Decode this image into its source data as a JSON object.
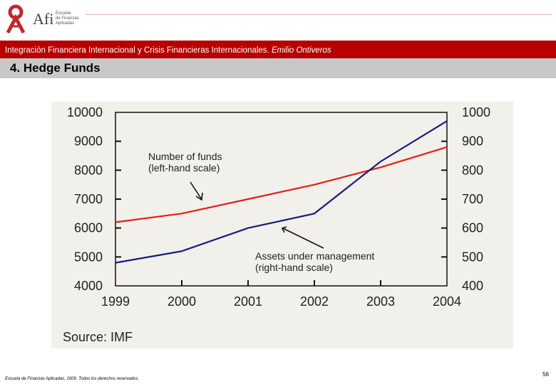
{
  "logo": {
    "name": "Afi",
    "subtitle": [
      "Escuela",
      "de Finanzas",
      "Aplicadas"
    ]
  },
  "header": {
    "title": "Integración Financiera Internacional y Crisis Financieras Internacionales.",
    "author": "Emilio Ontiveros",
    "color": "#b80000"
  },
  "section": {
    "title": "4. Hedge Funds"
  },
  "chart_data": {
    "type": "line",
    "x": [
      1999,
      2000,
      2001,
      2002,
      2003,
      2004
    ],
    "xticks": [
      "1999",
      "2000",
      "2001",
      "2002",
      "2003",
      "2004"
    ],
    "left_axis": {
      "ylim": [
        4000,
        10000
      ],
      "ticks": [
        "10000",
        "9000",
        "8000",
        "7000",
        "6000",
        "5000",
        "4000"
      ]
    },
    "right_axis": {
      "ylim": [
        400,
        1000
      ],
      "ticks": [
        "1000",
        "900",
        "800",
        "700",
        "600",
        "500",
        "400"
      ]
    },
    "series": [
      {
        "name": "Number of funds",
        "axis": "left",
        "color": "#e0201a",
        "values": [
          6200,
          6500,
          7000,
          7500,
          8100,
          8800
        ]
      },
      {
        "name": "Assets under management",
        "axis": "right",
        "color": "#1a1a80",
        "values": [
          480,
          520,
          600,
          650,
          830,
          970
        ]
      }
    ],
    "annotations": [
      {
        "line1": "Number of funds",
        "line2": "(left-hand scale)"
      },
      {
        "line1": "Assets under management",
        "line2": "(right-hand scale)"
      }
    ],
    "source": "Source: IMF"
  },
  "footer": {
    "copyright": "Escuela de Finanzas Aplicadas, 2009. Todos los derechos reservados.",
    "page": "56"
  }
}
